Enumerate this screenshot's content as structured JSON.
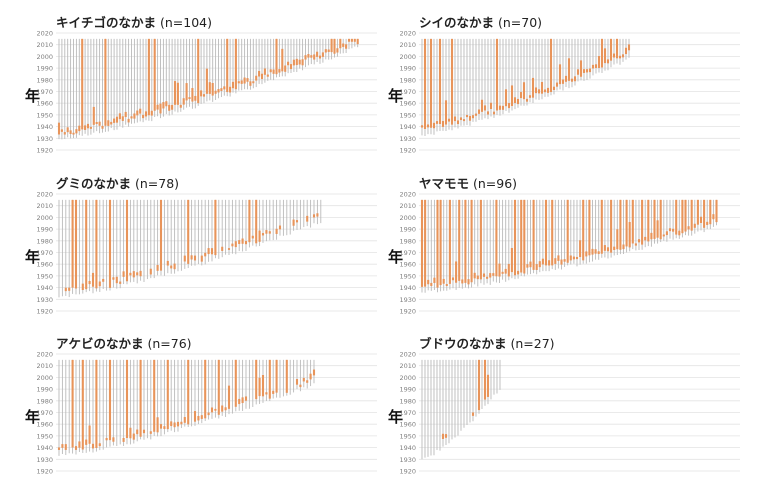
{
  "chart_data": [
    {
      "type": "bar",
      "title_name": "キイチゴのなかま",
      "title_count": "(n=104)",
      "ylabel": "年",
      "yticks": [
        "1920",
        "1930",
        "1940",
        "1950",
        "1960",
        "1970",
        "1980",
        "1990",
        "2000",
        "2010",
        "2020"
      ],
      "ylim": [
        1920,
        2020
      ],
      "n": 104,
      "start_range": [
        1930,
        2008
      ],
      "end_year": 2015,
      "orange_range": [
        1930,
        2010
      ],
      "spikes": [
        8,
        16,
        31,
        33,
        48,
        58,
        61,
        75,
        95,
        103
      ]
    },
    {
      "type": "bar",
      "title_name": "シイのなかま",
      "title_count": "(n=70)",
      "ylabel": "年",
      "yticks": [
        "1920",
        "1930",
        "1940",
        "1950",
        "1960",
        "1970",
        "1980",
        "1990",
        "2000",
        "2010",
        "2020"
      ],
      "ylim": [
        1920,
        2020
      ],
      "n": 70,
      "start_range": [
        1933,
        1998
      ],
      "end_year": 2015,
      "orange_range": [
        1938,
        2003
      ],
      "spikes": [
        1,
        3,
        6,
        10,
        25,
        43,
        60,
        63,
        65
      ]
    },
    {
      "type": "bar",
      "title_name": "グミのなかま",
      "title_count": "(n=78)",
      "ylabel": "年",
      "yticks": [
        "1920",
        "1930",
        "1940",
        "1950",
        "1960",
        "1970",
        "1980",
        "1990",
        "2000",
        "2010",
        "2020"
      ],
      "ylim": [
        1920,
        2020
      ],
      "n": 78,
      "start_range": [
        1932,
        1996
      ],
      "end_year": 2015,
      "orange_range": [
        1937,
        2003
      ],
      "spikes": [
        4,
        5,
        8,
        11,
        15,
        20,
        30,
        38,
        46,
        56,
        58
      ]
    },
    {
      "type": "bar",
      "title_name": "ヤマモモ",
      "title_count": "(n=96)",
      "ylabel": "年",
      "yticks": [
        "1920",
        "1930",
        "1940",
        "1950",
        "1960",
        "1970",
        "1980",
        "1990",
        "2000",
        "2010",
        "2020"
      ],
      "ylim": [
        1920,
        2020
      ],
      "n": 96,
      "start_range": [
        1936,
        1992
      ],
      "end_year": 2015,
      "orange_range": [
        1940,
        2002
      ],
      "spikes": [
        0,
        1,
        5,
        6,
        9,
        12,
        14,
        16,
        19,
        24,
        30,
        32,
        33,
        36,
        40,
        42,
        47,
        52,
        54,
        58,
        61,
        64,
        66,
        68,
        71,
        73,
        75,
        77,
        82,
        84,
        85,
        87,
        89,
        91,
        93,
        95
      ]
    },
    {
      "type": "bar",
      "title_name": "アケビのなかま",
      "title_count": "(n=76)",
      "ylabel": "年",
      "yticks": [
        "1920",
        "1930",
        "1940",
        "1950",
        "1960",
        "1970",
        "1980",
        "1990",
        "2000",
        "2010",
        "2020"
      ],
      "ylim": [
        1920,
        2020
      ],
      "n": 76,
      "start_range": [
        1933,
        1994
      ],
      "end_year": 2015,
      "orange_range": [
        1938,
        2014
      ],
      "spikes": [
        4,
        7,
        11,
        15,
        20,
        24,
        28,
        32,
        38,
        43,
        47,
        52,
        58,
        62,
        64,
        67
      ]
    },
    {
      "type": "bar",
      "title_name": "ブドウのなかま",
      "title_count": "(n=27)",
      "ylabel": "年",
      "yticks": [
        "1920",
        "1930",
        "1940",
        "1950",
        "1960",
        "1970",
        "1980",
        "1990",
        "2000",
        "2010",
        "2020"
      ],
      "ylim": [
        1920,
        2020
      ],
      "n": 27,
      "start_range": [
        1930,
        1990
      ],
      "end_year": 2015,
      "orange_range": [
        1932,
        1998
      ],
      "spikes": [
        19,
        21
      ]
    }
  ],
  "colors": {
    "orange": "#e8945a",
    "gray": "#b9b9b9",
    "grid": "#e3e3e3",
    "tick": "#808080"
  }
}
